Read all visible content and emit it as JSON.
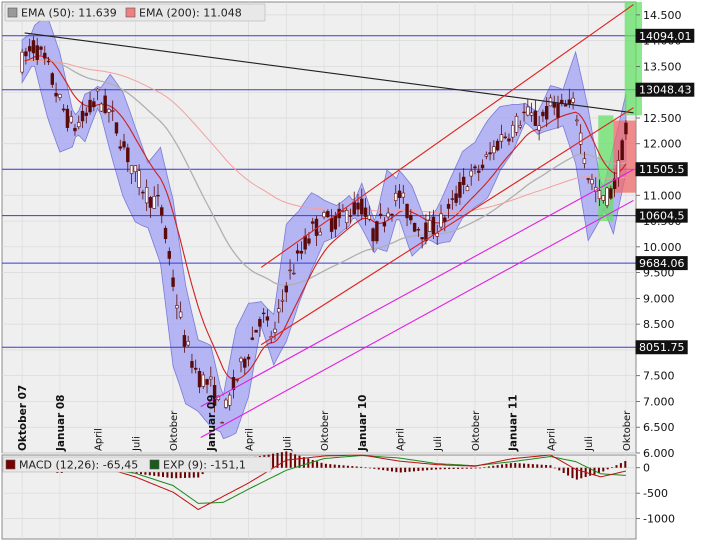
{
  "legend_top": {
    "ema50_label": "EMA (50): 11.639",
    "ema200_label": "EMA (200): 11.048",
    "ema50_color": "#9a9a9a",
    "ema200_color": "#f08080"
  },
  "legend_bottom": {
    "macd_label": "MACD (12,26): -65,45",
    "exp_label": "EXP (9): -151,1",
    "macd_color": "#7a0000",
    "exp_color": "#1a5a1a"
  },
  "colors": {
    "panel_bg": "#efefef",
    "band_fill": "#a9aaf2",
    "candle": "#5a0a0a",
    "hline": "#3a3ad8",
    "channel_red": "#e02020",
    "channel_magenta": "#e020e0",
    "trend_black": "#202020",
    "green_zone": "#66e066",
    "red_zone": "#f06a6a",
    "ema_fast": "#d02020",
    "ema_slow": "#b0b0b0"
  },
  "chart_data": [
    {
      "type": "candlestick",
      "y_axis_ticks": [
        "14.500",
        "14.000",
        "13.500",
        "13.000",
        "12.500",
        "12.000",
        "11.500",
        "11.000",
        "10.500",
        "10.000",
        "9.500",
        "9.000",
        "8.500",
        "8.000",
        "7.500",
        "7.000",
        "6.500",
        "6.000"
      ],
      "ylim": [
        6000,
        14750
      ],
      "x_axis_labels": [
        "Oktober 07",
        "Januar 08",
        "April",
        "Juli",
        "Oktober",
        "Januar 09",
        "April",
        "Juli",
        "Oktober",
        "Januar 10",
        "April",
        "Juli",
        "Oktober",
        "Januar 11",
        "April",
        "Juli",
        "Oktober"
      ],
      "x_positions": [
        0,
        3,
        6,
        9,
        12,
        15,
        18,
        21,
        24,
        27,
        30,
        33,
        36,
        39,
        42,
        45,
        48
      ],
      "xlim": [
        -1.6,
        48.8
      ],
      "horizontal_levels": [
        {
          "value": 14094.01,
          "label": "14094.01"
        },
        {
          "value": 13048.43,
          "label": "13048.43"
        },
        {
          "value": 11505.5,
          "label": "11505.5"
        },
        {
          "value": 10604.5,
          "label": "10604.5"
        },
        {
          "value": 9684.06,
          "label": "9684.06"
        },
        {
          "value": 8051.75,
          "label": "8051.75"
        }
      ],
      "price_path": [
        [
          0,
          13600
        ],
        [
          1,
          13900
        ],
        [
          2,
          13500
        ],
        [
          3,
          12800
        ],
        [
          4,
          12300
        ],
        [
          5,
          12500
        ],
        [
          6,
          12900
        ],
        [
          7,
          12600
        ],
        [
          8,
          12000
        ],
        [
          9,
          11400
        ],
        [
          10,
          11000
        ],
        [
          11,
          10800
        ],
        [
          12,
          9300
        ],
        [
          13,
          8100
        ],
        [
          14,
          7500
        ],
        [
          15,
          7300
        ],
        [
          16,
          6700
        ],
        [
          17,
          7400
        ],
        [
          18,
          8000
        ],
        [
          19,
          8700
        ],
        [
          20,
          8200
        ],
        [
          21,
          9300
        ],
        [
          22,
          9800
        ],
        [
          23,
          10300
        ],
        [
          24,
          10500
        ],
        [
          25,
          10500
        ],
        [
          26,
          10700
        ],
        [
          27,
          10800
        ],
        [
          28,
          10200
        ],
        [
          29,
          10700
        ],
        [
          30,
          11000
        ],
        [
          31,
          10500
        ],
        [
          32,
          10300
        ],
        [
          33,
          10400
        ],
        [
          34,
          10700
        ],
        [
          35,
          11200
        ],
        [
          36,
          11400
        ],
        [
          37,
          11700
        ],
        [
          38,
          12100
        ],
        [
          39,
          12300
        ],
        [
          40,
          12600
        ],
        [
          41,
          12400
        ],
        [
          42,
          12700
        ],
        [
          43,
          12700
        ],
        [
          44,
          12700
        ],
        [
          45,
          11400
        ],
        [
          46,
          10900
        ],
        [
          47,
          11100
        ],
        [
          48,
          12200
        ]
      ],
      "series_labels": [
        "EMA (50): 11.639",
        "EMA (200): 11.048"
      ]
    },
    {
      "type": "bar",
      "title": "MACD",
      "y_axis_ticks": [
        "0",
        "-500",
        "-1000"
      ],
      "ylim": [
        -1400,
        250
      ],
      "macd_path": [
        [
          0,
          140
        ],
        [
          3,
          -60
        ],
        [
          6,
          40
        ],
        [
          9,
          -180
        ],
        [
          12,
          -480
        ],
        [
          14,
          -820
        ],
        [
          16,
          -560
        ],
        [
          18,
          -300
        ],
        [
          21,
          150
        ],
        [
          24,
          230
        ],
        [
          27,
          250
        ],
        [
          30,
          130
        ],
        [
          33,
          60
        ],
        [
          36,
          30
        ],
        [
          39,
          180
        ],
        [
          42,
          250
        ],
        [
          44,
          -30
        ],
        [
          46,
          -180
        ],
        [
          48,
          -65
        ]
      ],
      "signal_path": [
        [
          0,
          110
        ],
        [
          3,
          10
        ],
        [
          6,
          0
        ],
        [
          9,
          -110
        ],
        [
          12,
          -350
        ],
        [
          14,
          -700
        ],
        [
          16,
          -680
        ],
        [
          18,
          -420
        ],
        [
          21,
          -50
        ],
        [
          24,
          180
        ],
        [
          27,
          240
        ],
        [
          30,
          190
        ],
        [
          33,
          80
        ],
        [
          36,
          40
        ],
        [
          39,
          120
        ],
        [
          42,
          220
        ],
        [
          44,
          120
        ],
        [
          46,
          -120
        ],
        [
          48,
          -151
        ]
      ],
      "series_labels": [
        "MACD (12,26): -65,45",
        "EXP (9): -151,1"
      ]
    }
  ]
}
